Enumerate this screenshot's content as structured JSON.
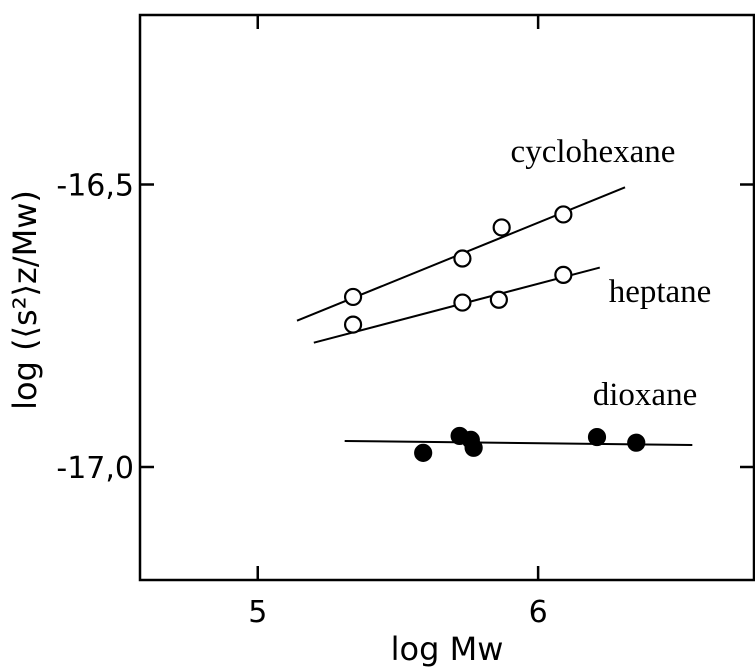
{
  "chart_data": {
    "type": "scatter",
    "xlabel": "log Mw",
    "ylabel": "log (⟨s²⟩z/Mw)",
    "xlim": [
      4.58,
      6.77
    ],
    "ylim": [
      -17.2,
      -16.2
    ],
    "xticks": [
      5,
      6
    ],
    "yticks": [
      {
        "value": -16.5,
        "label": "-16,5"
      },
      {
        "value": -17.0,
        "label": "-17,0"
      }
    ],
    "series": [
      {
        "name": "cyclohexane",
        "color": "#000000",
        "filled": false,
        "x": [
          5.34,
          5.73,
          5.87,
          6.09
        ],
        "values": [
          -16.699,
          -16.631,
          -16.576,
          -16.553
        ],
        "fit_x": [
          5.14,
          6.31
        ],
        "fit_y": [
          -16.741,
          -16.505
        ]
      },
      {
        "name": "heptane",
        "color": "#000000",
        "filled": false,
        "x": [
          5.34,
          5.73,
          5.86,
          6.09
        ],
        "values": [
          -16.748,
          -16.709,
          -16.704,
          -16.66
        ],
        "fit_x": [
          5.2,
          6.22
        ],
        "fit_y": [
          -16.78,
          -16.647
        ]
      },
      {
        "name": "dioxane",
        "color": "#000000",
        "filled": true,
        "x": [
          5.59,
          5.72,
          5.76,
          5.77,
          6.21,
          6.35
        ],
        "values": [
          -16.975,
          -16.945,
          -16.952,
          -16.966,
          -16.947,
          -16.957
        ],
        "fit_x": [
          5.31,
          6.55
        ],
        "fit_y": [
          -16.954,
          -16.961
        ]
      }
    ]
  }
}
